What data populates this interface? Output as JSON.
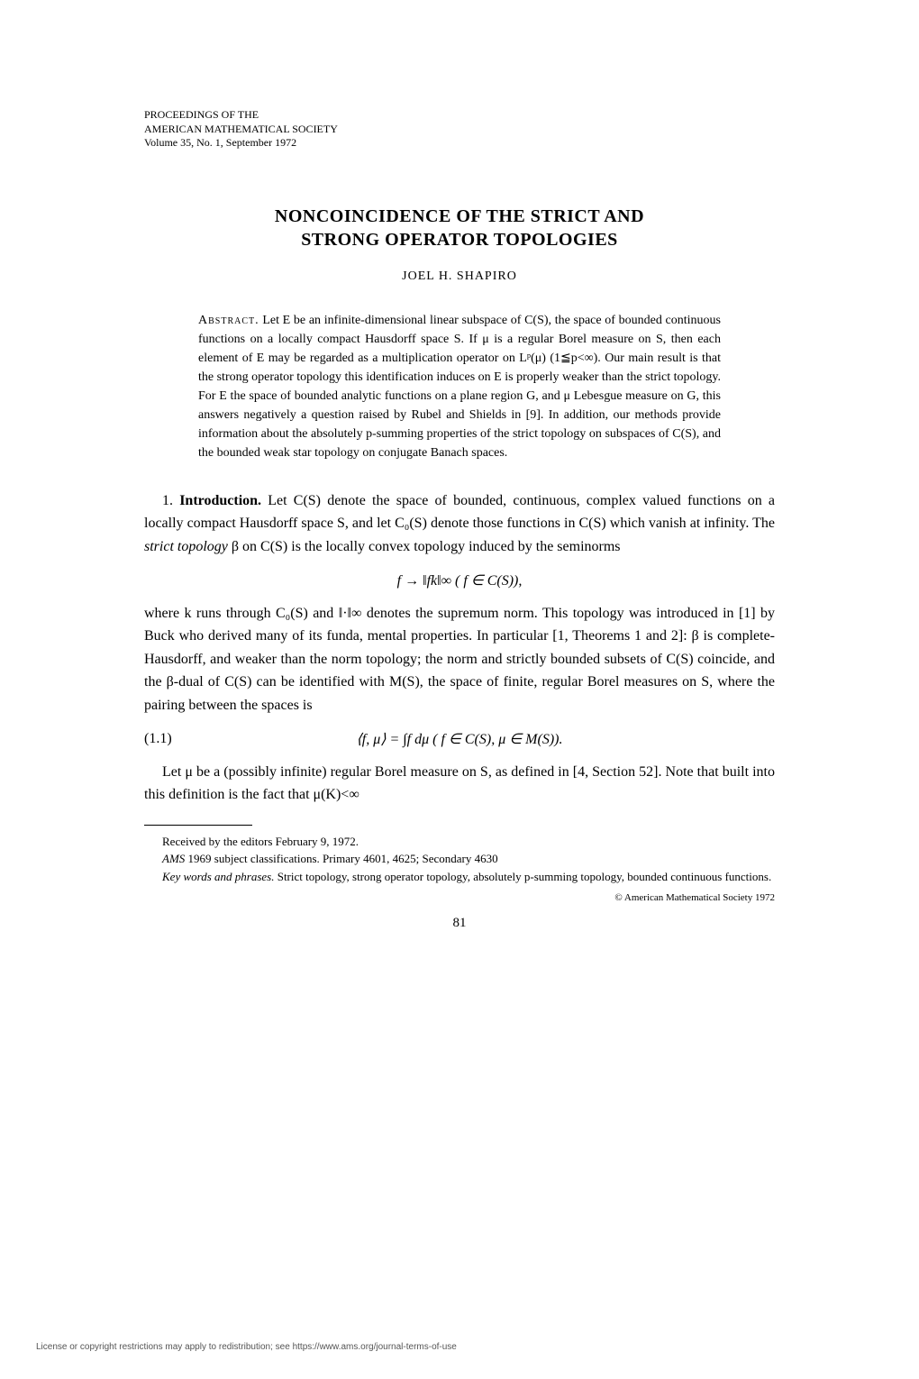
{
  "header": {
    "line1": "PROCEEDINGS OF THE",
    "line2": "AMERICAN MATHEMATICAL SOCIETY",
    "line3": "Volume 35, No. 1, September 1972"
  },
  "title": {
    "line1": "NONCOINCIDENCE OF THE STRICT AND",
    "line2": "STRONG OPERATOR TOPOLOGIES"
  },
  "author": "JOEL H. SHAPIRO",
  "abstract": {
    "label": "Abstract.",
    "text": "Let E be an infinite-dimensional linear subspace of C(S), the space of bounded continuous functions on a locally compact Hausdorff space S. If μ is a regular Borel measure on S, then each element of E may be regarded as a multiplication operator on Lᵖ(μ) (1≦p<∞). Our main result is that the strong operator topology this identification induces on E is properly weaker than the strict topology. For E the space of bounded analytic functions on a plane region G, and μ Lebesgue measure on G, this answers negatively a question raised by Rubel and Shields in [9]. In addition, our methods provide information about the absolutely p-summing properties of the strict topology on subspaces of C(S), and the bounded weak star topology on conjugate Banach spaces."
  },
  "intro": {
    "num": "1.",
    "heading": "Introduction.",
    "para1a": "Let C(S) denote the space of bounded, continuous, complex valued functions on a locally compact Hausdorff space S, and let C₀(S) denote those functions in C(S) which vanish at infinity. The ",
    "strict_topology": "strict topology",
    "para1b": " β on C(S) is the locally convex topology induced by the seminorms",
    "formula1": "f → ‖fk‖∞      ( f ∈ C(S)),",
    "para2": "where k runs through C₀(S) and ‖·‖∞ denotes the supremum norm. This topology was introduced in [1] by Buck who derived many of its funda, mental properties. In particular [1, Theorems 1 and 2]: β is complete-Hausdorff, and weaker than the norm topology; the norm and strictly bounded subsets of C(S) coincide, and the β-dual of C(S) can be identified with M(S), the space of finite, regular Borel measures on S, where the pairing between the spaces is",
    "eq_num": "(1.1)",
    "formula2": "⟨f, μ⟩ = ∫f dμ      ( f ∈ C(S), μ ∈ M(S)).",
    "para3": "Let μ be a (possibly infinite) regular Borel measure on S, as defined in [4, Section 52]. Note that built into this definition is the fact that μ(K)<∞"
  },
  "footnotes": {
    "received": "Received by the editors February 9, 1972.",
    "ams_label": "AMS",
    "ams_text": " 1969 subject classifications. Primary 4601, 4625; Secondary 4630",
    "keywords_label": "Key words and phrases.",
    "keywords_text": " Strict topology, strong operator topology, absolutely p-summing topology, bounded continuous functions."
  },
  "copyright": "© American Mathematical Society 1972",
  "page_number": "81",
  "license": "License or copyright restrictions may apply to redistribution; see https://www.ams.org/journal-terms-of-use"
}
